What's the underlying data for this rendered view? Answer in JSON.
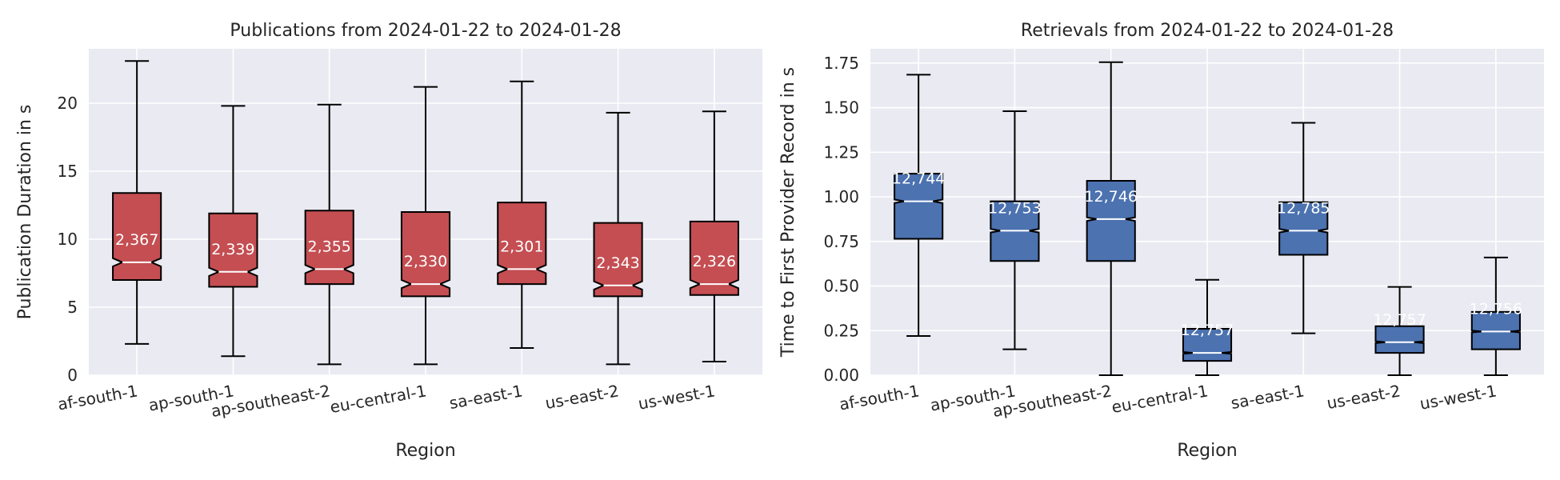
{
  "chart_data": [
    {
      "type": "boxplot",
      "title": "Publications from 2024-01-22 to 2024-01-28",
      "xlabel": "Region",
      "ylabel": "Publication Duration in s",
      "ylim": [
        0,
        24
      ],
      "yticks": [
        0,
        5,
        10,
        15,
        20
      ],
      "grid": true,
      "notched": true,
      "color": "#c44e52",
      "categories": [
        "af-south-1",
        "ap-south-1",
        "ap-southeast-2",
        "eu-central-1",
        "sa-east-1",
        "us-east-2",
        "us-west-1"
      ],
      "boxes": [
        {
          "whislo": 2.3,
          "q1": 7.0,
          "med": 8.3,
          "q3": 13.4,
          "whishi": 23.1,
          "notch_lo": 8.0,
          "notch_hi": 8.6
        },
        {
          "whislo": 1.4,
          "q1": 6.5,
          "med": 7.6,
          "q3": 11.9,
          "whishi": 19.8,
          "notch_lo": 7.3,
          "notch_hi": 7.9
        },
        {
          "whislo": 0.8,
          "q1": 6.7,
          "med": 7.8,
          "q3": 12.1,
          "whishi": 19.9,
          "notch_lo": 7.5,
          "notch_hi": 8.1
        },
        {
          "whislo": 0.8,
          "q1": 5.8,
          "med": 6.7,
          "q3": 12.0,
          "whishi": 21.2,
          "notch_lo": 6.4,
          "notch_hi": 7.0
        },
        {
          "whislo": 2.0,
          "q1": 6.7,
          "med": 7.8,
          "q3": 12.7,
          "whishi": 21.6,
          "notch_lo": 7.5,
          "notch_hi": 8.1
        },
        {
          "whislo": 0.8,
          "q1": 5.8,
          "med": 6.6,
          "q3": 11.2,
          "whishi": 19.3,
          "notch_lo": 6.3,
          "notch_hi": 6.9
        },
        {
          "whislo": 1.0,
          "q1": 5.9,
          "med": 6.7,
          "q3": 11.3,
          "whishi": 19.4,
          "notch_lo": 6.4,
          "notch_hi": 7.0
        }
      ],
      "counts": [
        "2,367",
        "2,339",
        "2,355",
        "2,330",
        "2,301",
        "2,343",
        "2,326"
      ]
    },
    {
      "type": "boxplot",
      "title": "Retrievals from 2024-01-22 to 2024-01-28",
      "xlabel": "Region",
      "ylabel": "Time to First Provider Record in s",
      "ylim": [
        0,
        1.83
      ],
      "yticks": [
        0.0,
        0.25,
        0.5,
        0.75,
        1.0,
        1.25,
        1.5,
        1.75
      ],
      "ytick_labels": [
        "0.00",
        "0.25",
        "0.50",
        "0.75",
        "1.00",
        "1.25",
        "1.50",
        "1.75"
      ],
      "grid": true,
      "notched": true,
      "color": "#4c72b0",
      "categories": [
        "af-south-1",
        "ap-south-1",
        "ap-southeast-2",
        "eu-central-1",
        "sa-east-1",
        "us-east-2",
        "us-west-1"
      ],
      "boxes": [
        {
          "whislo": 0.22,
          "q1": 0.765,
          "med": 0.975,
          "q3": 1.13,
          "whishi": 1.685,
          "notch_lo": 0.965,
          "notch_hi": 0.985
        },
        {
          "whislo": 0.145,
          "q1": 0.64,
          "med": 0.81,
          "q3": 0.975,
          "whishi": 1.48,
          "notch_lo": 0.8,
          "notch_hi": 0.82
        },
        {
          "whislo": 0.0,
          "q1": 0.64,
          "med": 0.875,
          "q3": 1.09,
          "whishi": 1.755,
          "notch_lo": 0.865,
          "notch_hi": 0.885
        },
        {
          "whislo": 0.0,
          "q1": 0.08,
          "med": 0.125,
          "q3": 0.26,
          "whishi": 0.535,
          "notch_lo": 0.12,
          "notch_hi": 0.13
        },
        {
          "whislo": 0.235,
          "q1": 0.675,
          "med": 0.81,
          "q3": 0.97,
          "whishi": 1.415,
          "notch_lo": 0.8,
          "notch_hi": 0.82
        },
        {
          "whislo": 0.0,
          "q1": 0.125,
          "med": 0.185,
          "q3": 0.275,
          "whishi": 0.495,
          "notch_lo": 0.18,
          "notch_hi": 0.19
        },
        {
          "whislo": 0.0,
          "q1": 0.145,
          "med": 0.245,
          "q3": 0.355,
          "whishi": 0.66,
          "notch_lo": 0.24,
          "notch_hi": 0.25
        }
      ],
      "counts": [
        "12,744",
        "12,753",
        "12,746",
        "12,757",
        "12,785",
        "12,757",
        "12,756"
      ]
    }
  ]
}
